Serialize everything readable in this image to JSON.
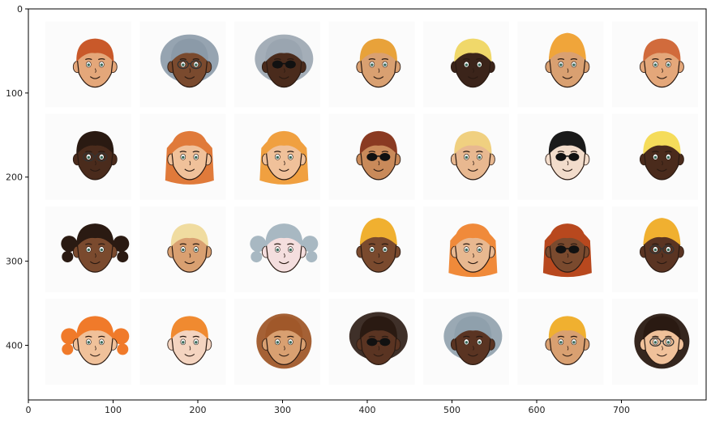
{
  "figure": {
    "type": "image-grid",
    "axes": {
      "xlim": [
        0,
        800
      ],
      "ylim": [
        465,
        0
      ],
      "x_ticks": [
        0,
        100,
        200,
        300,
        400,
        500,
        600,
        700
      ],
      "y_ticks": [
        0,
        100,
        200,
        300,
        400
      ]
    },
    "grid": {
      "rows": 4,
      "cols": 7
    },
    "faces": [
      {
        "hair": "#c9592a",
        "skin": "#e4a77a",
        "style": "short",
        "glasses": "none"
      },
      {
        "hair": "#8b9aa8",
        "skin": "#7a4a2e",
        "style": "afro",
        "glasses": "clear"
      },
      {
        "hair": "#9aa5b0",
        "skin": "#4a2b1c",
        "style": "afro",
        "glasses": "sun"
      },
      {
        "hair": "#e8a23a",
        "skin": "#d9a071",
        "style": "short",
        "glasses": "none"
      },
      {
        "hair": "#f0d86a",
        "skin": "#3b241a",
        "style": "short",
        "glasses": "none"
      },
      {
        "hair": "#f0a53a",
        "skin": "#d9a071",
        "style": "tall",
        "glasses": "none"
      },
      {
        "hair": "#d16b3c",
        "skin": "#e4a77a",
        "style": "short",
        "glasses": "none"
      },
      {
        "hair": "#2a1a12",
        "skin": "#4a2b1c",
        "style": "short",
        "glasses": "clear"
      },
      {
        "hair": "#e07a3a",
        "skin": "#f0c19a",
        "style": "long",
        "glasses": "none"
      },
      {
        "hair": "#f0a040",
        "skin": "#f0c19a",
        "style": "long",
        "glasses": "none"
      },
      {
        "hair": "#8a3a22",
        "skin": "#c98a5a",
        "style": "short",
        "glasses": "sun"
      },
      {
        "hair": "#f0d080",
        "skin": "#e8b890",
        "style": "short",
        "glasses": "none"
      },
      {
        "hair": "#1a1a1a",
        "skin": "#f2dccb",
        "style": "short",
        "glasses": "sun"
      },
      {
        "hair": "#f5dc5a",
        "skin": "#4a2b1c",
        "style": "short",
        "glasses": "none"
      },
      {
        "hair": "#2a1a12",
        "skin": "#7a4a2e",
        "style": "pigtails",
        "glasses": "none"
      },
      {
        "hair": "#f0dca0",
        "skin": "#d9a071",
        "style": "short",
        "glasses": "none"
      },
      {
        "hair": "#a8b8c2",
        "skin": "#f4dede",
        "style": "pigtails",
        "glasses": "none"
      },
      {
        "hair": "#f0b030",
        "skin": "#7a4a2e",
        "style": "tall",
        "glasses": "none"
      },
      {
        "hair": "#f08a3a",
        "skin": "#e8b890",
        "style": "long",
        "glasses": "none"
      },
      {
        "hair": "#b8481e",
        "skin": "#7a4a2e",
        "style": "long",
        "glasses": "sun"
      },
      {
        "hair": "#f0b030",
        "skin": "#5a3422",
        "style": "tall",
        "glasses": "clear"
      },
      {
        "hair": "#f07a2a",
        "skin": "#f0c19a",
        "style": "pigtails",
        "glasses": "none"
      },
      {
        "hair": "#f08a30",
        "skin": "#f4d4c0",
        "style": "short",
        "glasses": "none"
      },
      {
        "hair": "#a0582a",
        "skin": "#d9a071",
        "style": "curly",
        "glasses": "none"
      },
      {
        "hair": "#2a1a12",
        "skin": "#5a3422",
        "style": "afro",
        "glasses": "sun"
      },
      {
        "hair": "#8fa0ac",
        "skin": "#5a3422",
        "style": "afro",
        "glasses": "none"
      },
      {
        "hair": "#f0b030",
        "skin": "#d9a071",
        "style": "short",
        "glasses": "none"
      },
      {
        "hair": "#2a1a12",
        "skin": "#f0c19a",
        "style": "curly",
        "glasses": "clear"
      }
    ]
  }
}
